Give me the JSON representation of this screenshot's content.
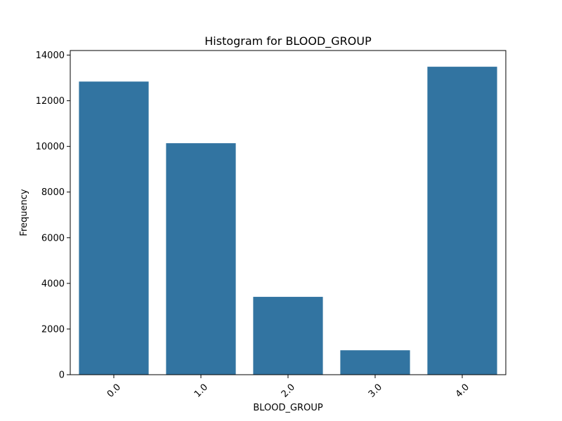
{
  "chart_data": {
    "type": "bar",
    "title": "Histogram for BLOOD_GROUP",
    "xlabel": "BLOOD_GROUP",
    "ylabel": "Frequency",
    "categories": [
      "0.0",
      "1.0",
      "2.0",
      "3.0",
      "4.0"
    ],
    "values": [
      12840,
      10140,
      3410,
      1070,
      13490
    ],
    "ylim": [
      0,
      14200
    ],
    "yticks": [
      0,
      2000,
      4000,
      6000,
      8000,
      10000,
      12000,
      14000
    ],
    "bar_color": "#3274a1",
    "grid": false,
    "legend": "none"
  }
}
